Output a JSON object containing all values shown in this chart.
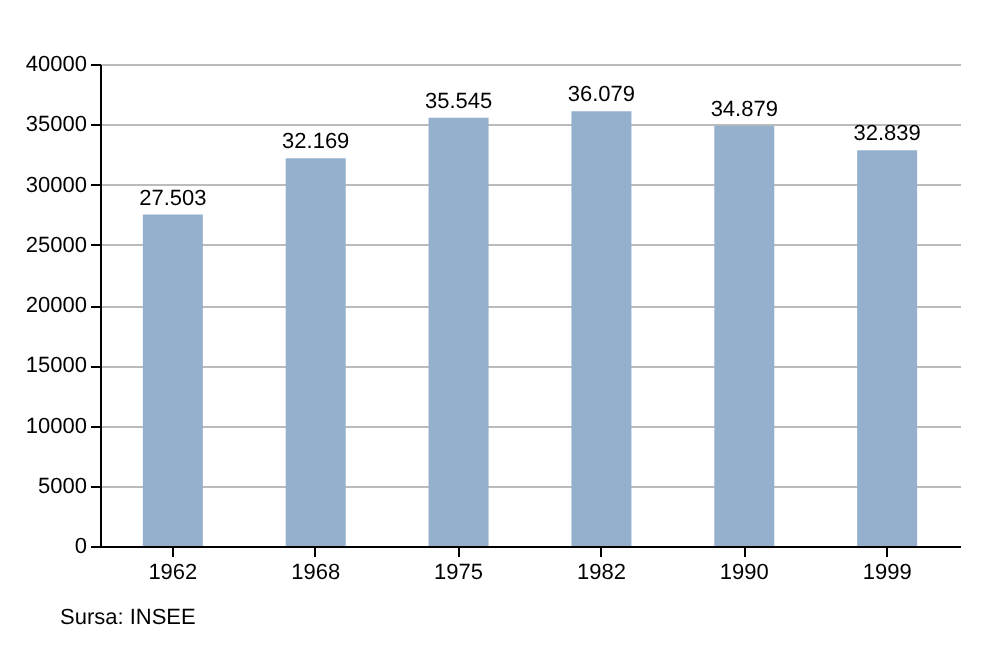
{
  "chart_data": {
    "type": "bar",
    "categories": [
      "1962",
      "1968",
      "1975",
      "1982",
      "1990",
      "1999"
    ],
    "values": [
      27503,
      32169,
      35545,
      36079,
      34879,
      32839
    ],
    "value_labels": [
      "27.503",
      "32.169",
      "35.545",
      "36.079",
      "34.879",
      "32.839"
    ],
    "color": "#95b0cc",
    "ylim": [
      0,
      40000
    ],
    "yticks": [
      0,
      5000,
      10000,
      15000,
      20000,
      25000,
      30000,
      35000,
      40000
    ],
    "grid": "y",
    "annotations": [
      "Sursa: INSEE"
    ]
  }
}
